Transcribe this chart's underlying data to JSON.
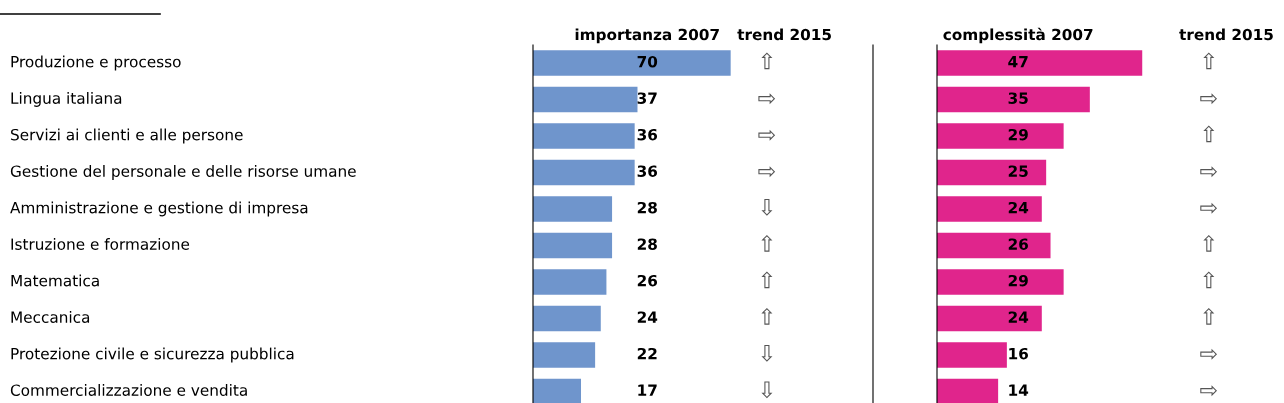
{
  "chart_data": [
    {
      "type": "bar",
      "orientation": "horizontal",
      "title": "importanza 2007",
      "data_labels": true,
      "color": "#6f95cc",
      "categories": [
        "Produzione e processo",
        "Lingua italiana",
        "Servizi ai clienti e alle persone",
        "Gestione del personale e delle risorse umane",
        "Amministrazione e gestione di impresa",
        "Istruzione e formazione",
        "Matematica",
        "Meccanica",
        "Protezione civile e sicurezza pubblica",
        "Commercializzazione e vendita"
      ],
      "values": [
        70,
        37,
        36,
        36,
        28,
        28,
        26,
        24,
        22,
        17
      ],
      "annotations": [
        "trend 2015",
        "⇧",
        "⇨",
        "⇨",
        "⇨",
        "⇩",
        "⇧",
        "⇧",
        "⇧",
        "⇩",
        "⇩"
      ]
    },
    {
      "type": "bar",
      "orientation": "horizontal",
      "title": "complessità 2007",
      "data_labels": true,
      "color": "#e0258c",
      "categories": [
        null,
        null,
        null,
        null,
        null,
        null,
        null,
        null,
        null,
        null
      ],
      "values": [
        47,
        35,
        29,
        25,
        24,
        26,
        29,
        24,
        16,
        14
      ],
      "annotations": [
        "trend 2015",
        "⇧",
        "⇨",
        "⇧",
        "⇨",
        "⇨",
        "⇧",
        "⇧",
        "⇧",
        "⇨",
        "⇨"
      ]
    }
  ]
}
